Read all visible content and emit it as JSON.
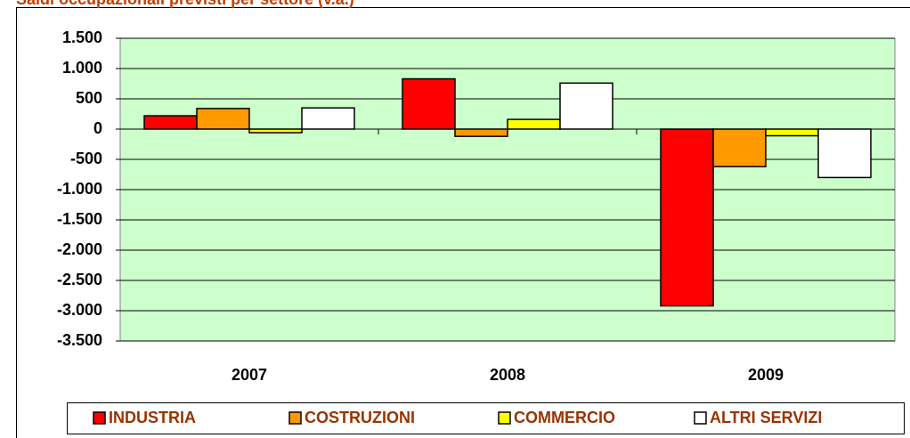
{
  "chart_data": {
    "type": "bar",
    "title": "Saldi occupazionali previsti per settore (v.a.)",
    "categories": [
      "2007",
      "2008",
      "2009"
    ],
    "series": [
      {
        "name": "INDUSTRIA",
        "color": "#ff0000",
        "values": [
          220,
          830,
          -2920
        ]
      },
      {
        "name": "COSTRUZIONI",
        "color": "#ff9900",
        "values": [
          340,
          -120,
          -620
        ]
      },
      {
        "name": "COMMERCIO",
        "color": "#ffff00",
        "values": [
          -60,
          160,
          -110
        ]
      },
      {
        "name": "ALTRI SERVIZI",
        "color": "#ffffff",
        "values": [
          350,
          760,
          -800
        ]
      }
    ],
    "ylim": [
      -3500,
      1500
    ],
    "yticks": [
      {
        "value": -3500,
        "label": "-3.500"
      },
      {
        "value": -3000,
        "label": "-3.000"
      },
      {
        "value": -2500,
        "label": "-2.500"
      },
      {
        "value": -2000,
        "label": "-2.000"
      },
      {
        "value": -1500,
        "label": "-1.500"
      },
      {
        "value": -1000,
        "label": "-1.000"
      },
      {
        "value": -500,
        "label": "-500"
      },
      0,
      500,
      {
        "value": 1000,
        "label": "1.000"
      },
      {
        "value": 1500,
        "label": "1.500"
      }
    ],
    "grid": true,
    "plot_background": "#ccffcc",
    "legend": "bottom"
  }
}
